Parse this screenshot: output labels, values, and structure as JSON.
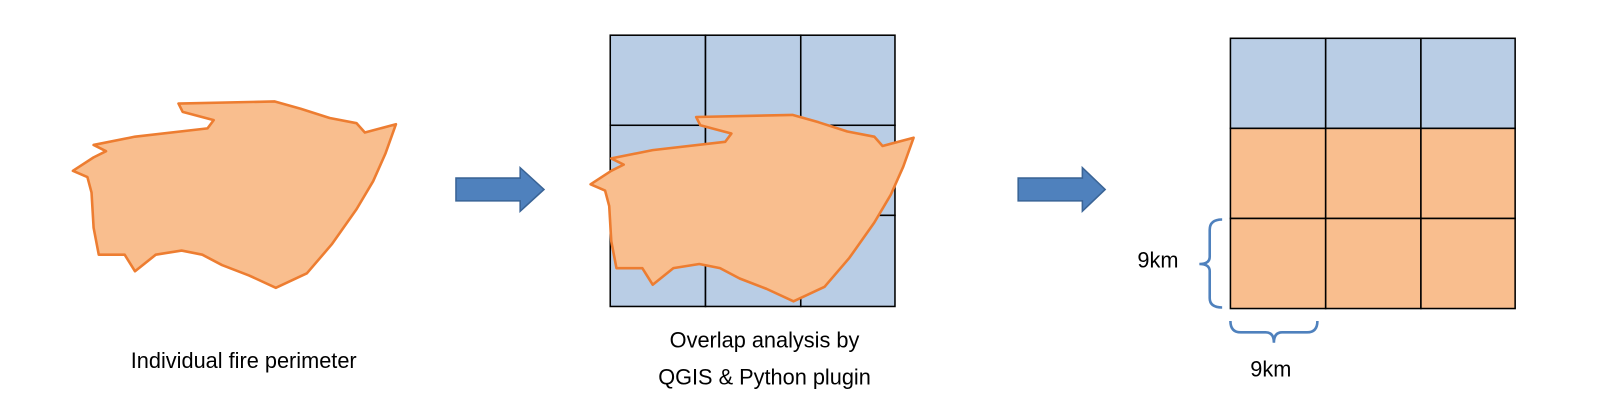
{
  "steps": [
    {
      "caption": "Individual fire perimeter"
    },
    {
      "caption_lines": [
        "Overlap analysis by",
        "QGIS & Python plugin"
      ]
    },
    {
      "cell_height": "9km",
      "cell_width": "9km"
    }
  ]
}
